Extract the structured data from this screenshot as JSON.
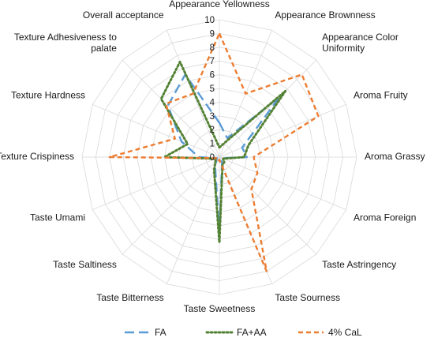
{
  "chart_data": {
    "type": "radar",
    "axes": [
      "Appearance Yellowness",
      "Appearance Brownness",
      "Appearance Color Uniformity",
      "Aroma Fruity",
      "Aroma Grassy",
      "Aroma Foreign",
      "Taste Astringency",
      "Taste Sourness",
      "Taste Sweetness",
      "Taste Bitterness",
      "Taste Saltiness",
      "Taste Umami",
      "Texture Crispiness",
      "Texture Hardness",
      "Texture Adhesiveness to palate",
      "Overall acceptance"
    ],
    "axis_label_lines": [
      [
        "Appearance Yellowness"
      ],
      [
        "Appearance Brownness"
      ],
      [
        "Appearance Color",
        "Uniformity"
      ],
      [
        "Aroma Fruity"
      ],
      [
        "Aroma Grassy"
      ],
      [
        "Aroma Foreign"
      ],
      [
        "Taste Astringency"
      ],
      [
        "Taste Sourness"
      ],
      [
        "Taste Sweetness"
      ],
      [
        "Taste Bitterness"
      ],
      [
        "Taste Saltiness"
      ],
      [
        "Taste Umami"
      ],
      [
        "Texture Crispiness"
      ],
      [
        "Texture Hardness"
      ],
      [
        "Texture Adhesiveness to",
        "palate"
      ],
      [
        "Overall acceptance"
      ]
    ],
    "ticks": [
      "0",
      "1",
      "2",
      "3",
      "4",
      "5",
      "6",
      "7",
      "8",
      "9",
      "10"
    ],
    "rmin": 0,
    "rmax": 10,
    "series": [
      {
        "name": "FA",
        "color": "#5b9bd5",
        "dash": "long-dash",
        "values": [
          2.5,
          1.5,
          6.2,
          1.8,
          2.0,
          0.2,
          0.2,
          0.5,
          5.5,
          0.8,
          0.3,
          0.2,
          1.5,
          3.0,
          5.3,
          6.5
        ]
      },
      {
        "name": "FA+AA",
        "color": "#548235",
        "dash": "dotted",
        "values": [
          0.7,
          1.2,
          6.8,
          2.3,
          1.8,
          0.3,
          0.5,
          0.6,
          6.2,
          1.0,
          0.4,
          0.3,
          4.0,
          2.5,
          6.0,
          7.5
        ]
      },
      {
        "name": "4% CaL",
        "color": "#ed7d31",
        "dash": "dashed",
        "values": [
          9.0,
          5.0,
          8.5,
          7.8,
          2.5,
          3.0,
          3.3,
          9.0,
          0.2,
          0.3,
          0.2,
          0.2,
          8.0,
          3.5,
          5.5,
          5.0
        ]
      }
    ],
    "grid": true,
    "legend": "bottom"
  }
}
